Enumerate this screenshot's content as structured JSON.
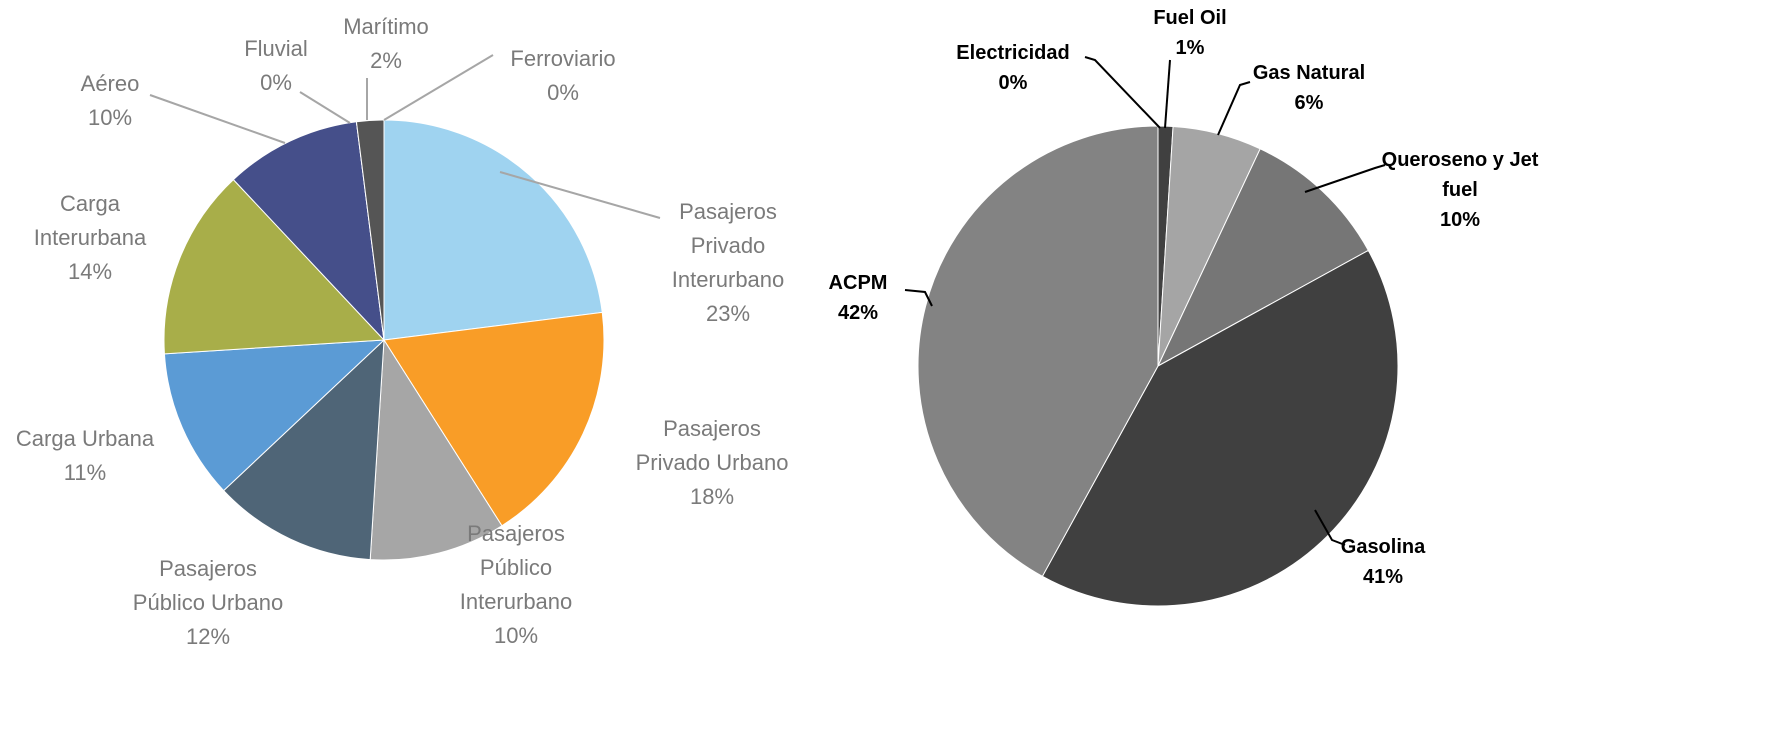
{
  "chart_data": [
    {
      "type": "pie",
      "categories": [
        "Pasajeros\nPrivado\nInterurbano",
        "Pasajeros\nPrivado Urbano",
        "Pasajeros\nPúblico\nInterurbano",
        "Pasajeros\nPúblico Urbano",
        "Carga Urbana",
        "Carga\nInterurbana",
        "Aéreo",
        "Fluvial",
        "Marítimo",
        "Ferroviario"
      ],
      "values": [
        23,
        18,
        10,
        12,
        11,
        14,
        10,
        0,
        2,
        0
      ],
      "value_labels": [
        "23%",
        "18%",
        "10%",
        "12%",
        "11%",
        "14%",
        "10%",
        "0%",
        "2%",
        "0%"
      ],
      "colors": [
        "#9fd3f0",
        "#f99d27",
        "#a6a6a6",
        "#4f6577",
        "#5b9bd5",
        "#a8ae49",
        "#454f8a",
        "#333333",
        "#555555",
        "#333333"
      ]
    },
    {
      "type": "pie",
      "categories": [
        "Fuel Oil",
        "Gas Natural",
        "Queroseno y Jet\nfuel",
        "Gasolina",
        "ACPM",
        "Electricidad"
      ],
      "values": [
        1,
        6,
        10,
        41,
        42,
        0
      ],
      "value_labels": [
        "1%",
        "6%",
        "10%",
        "41%",
        "42%",
        "0%"
      ],
      "colors": [
        "#404040",
        "#a5a5a5",
        "#767676",
        "#404040",
        "#838383",
        "#262626"
      ]
    }
  ]
}
